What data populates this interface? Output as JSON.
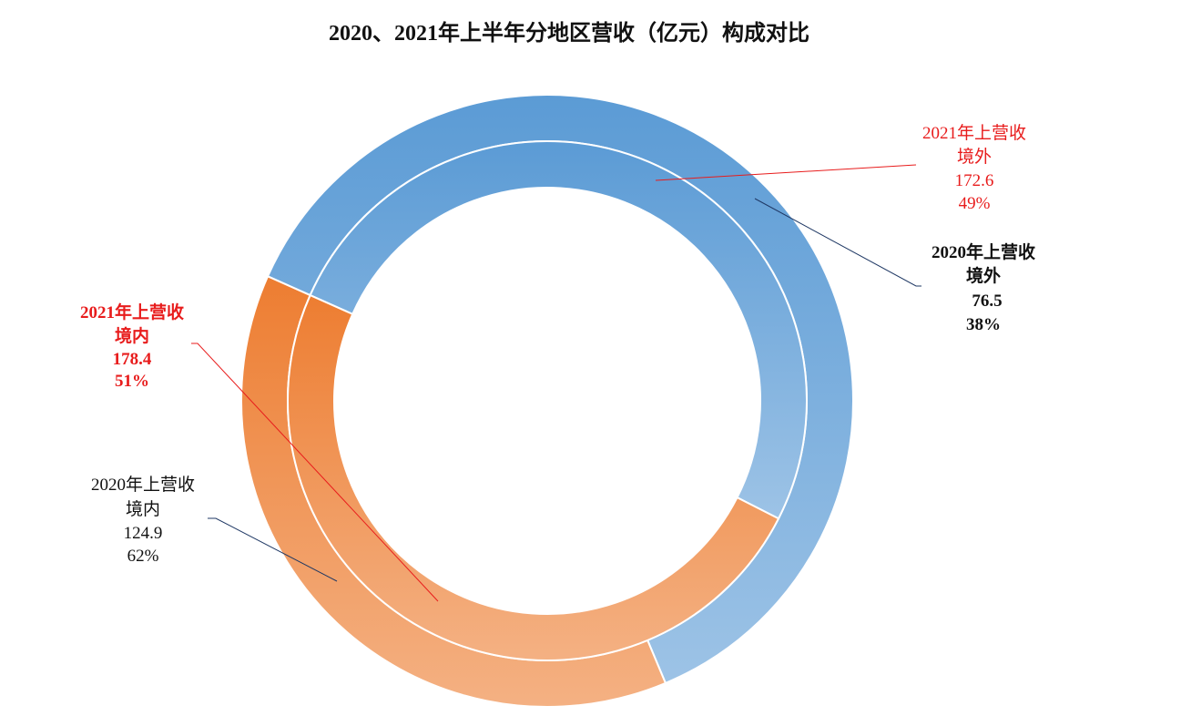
{
  "chart_data": {
    "type": "pie",
    "subtype": "nested-donut",
    "title": "2020、2021年上半年分地区营收（亿元）构成对比",
    "categories": [
      "境内",
      "境外"
    ],
    "series": [
      {
        "name": "2020年上营收",
        "ring": "outer",
        "values": [
          124.9,
          76.5
        ],
        "percent_labels": [
          "62%",
          "38%"
        ]
      },
      {
        "name": "2021年上营收",
        "ring": "inner",
        "values": [
          178.4,
          172.6
        ],
        "percent_labels": [
          "51%",
          "49%"
        ]
      }
    ],
    "colors": {
      "domestic_dark": "#5b9bd5",
      "domestic_light": "#9dc3e6",
      "overseas_dark": "#ed7d31",
      "overseas_light": "#f4b183",
      "label_2021": "#e81c1c",
      "label_2020": "#111111",
      "leader_2020": "#1f3864",
      "leader_2021": "#e81c1c"
    },
    "labels": [
      {
        "id": "label-2020-domestic",
        "series": "2020年上营收",
        "category": "境内",
        "value": "124.9",
        "percent": "62%"
      },
      {
        "id": "label-2020-overseas",
        "series": "2020年上营收",
        "category": "境外",
        "value": "76.5",
        "percent": "38%"
      },
      {
        "id": "label-2021-domestic",
        "series": "2021年上营收",
        "category": "境内",
        "value": "178.4",
        "percent": "51%"
      },
      {
        "id": "label-2021-overseas",
        "series": "2021年上营收",
        "category": "境外",
        "value": "172.6",
        "percent": "49%"
      }
    ],
    "legend": "none"
  }
}
